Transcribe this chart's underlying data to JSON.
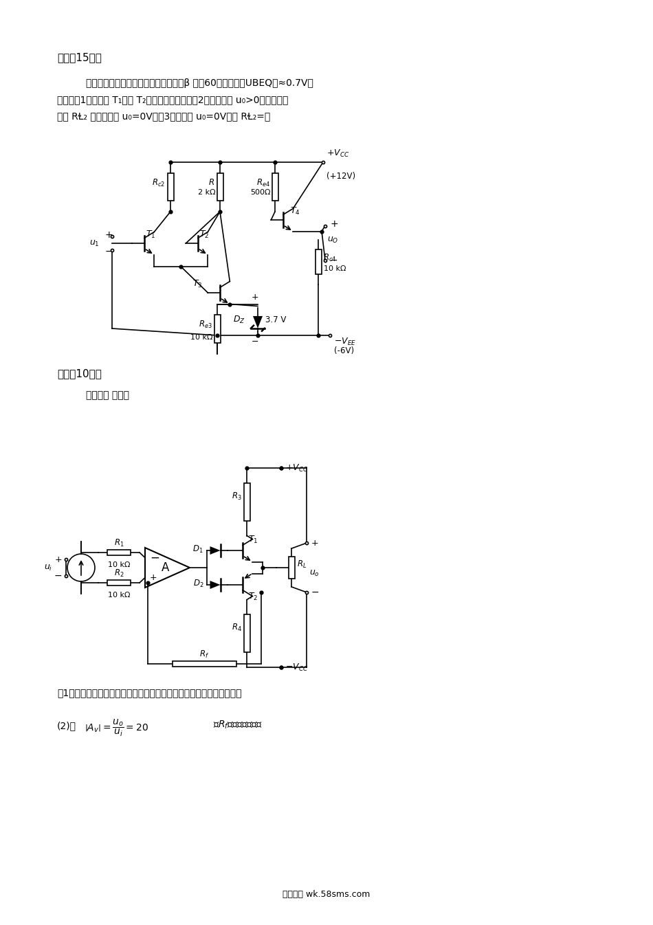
{
  "s3_header": "三、（15分）",
  "s3_line1": "电路如图所示，所有晶体管均为硅管，",
  "s3_line1b": "β 均为60，静态时｜ｕBEQ｜≈0.7V。",
  "s3_line2": "试求：（1）静态时 T₁ 管和 T₂ 管的发射极电流。（2）若静态时 u₀>0，则应如何",
  "s3_line3": "调节 RⱢ₂ 的値才能使 u₀=0V？（3）若静态 u₀=0V，则 RⱢ₂=？",
  "s4_header": "四、（10分）",
  "s4_line1": "电路如图 所示。",
  "bt1": "（1）正确接入信号源和反馈，使电路的输入阻抗增大，输出阻抗减小；",
  "bt2_pre": "（2）若",
  "bt2_post": "则Rₗ应取多少千欧？",
  "footer": "五八文库 wk.58sms.com",
  "bg": "#ffffff"
}
